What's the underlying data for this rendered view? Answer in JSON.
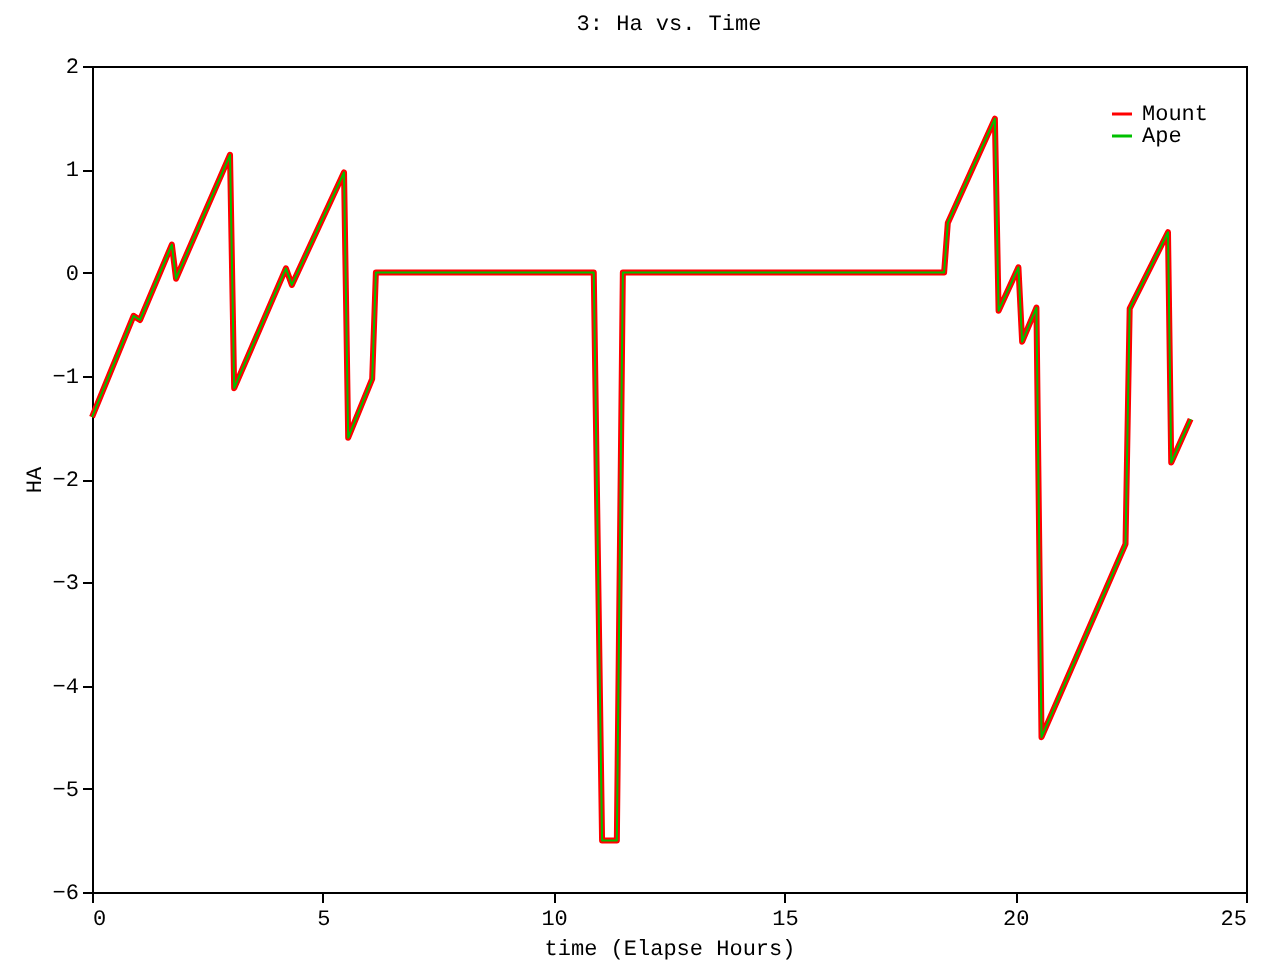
{
  "chart_data": {
    "type": "line",
    "title": "3: Ha vs. Time",
    "xlabel": "time (Elapse Hours)",
    "ylabel": "HA",
    "x": [
      0,
      0.9,
      1.04,
      1.73,
      1.82,
      2.99,
      3.08,
      4.2,
      4.33,
      5.46,
      5.55,
      6.07,
      6.15,
      10.87,
      11.05,
      11.37,
      11.5,
      18.46,
      18.54,
      19.56,
      19.64,
      20.07,
      20.15,
      20.46,
      20.57,
      22.39,
      22.48,
      23.31,
      23.38,
      23.8
    ],
    "series": [
      {
        "name": "Mount",
        "color": "#ff0000",
        "values": [
          -1.4,
          -0.42,
          -0.46,
          0.27,
          -0.06,
          1.14,
          -1.12,
          0.04,
          -0.12,
          0.97,
          -1.6,
          -1.03,
          0,
          0,
          -5.5,
          -5.5,
          0,
          0,
          0.48,
          1.49,
          -0.37,
          0.05,
          -0.67,
          -0.34,
          -4.5,
          -2.63,
          -0.35,
          0.39,
          -1.84,
          -1.42
        ]
      },
      {
        "name": "Ape",
        "color": "#00c000",
        "values": [
          -1.4,
          -0.42,
          -0.46,
          0.27,
          -0.06,
          1.14,
          -1.12,
          0.04,
          -0.12,
          0.97,
          -1.6,
          -1.03,
          0,
          0,
          -5.5,
          -5.5,
          0,
          0,
          0.48,
          1.49,
          -0.37,
          0.05,
          -0.67,
          -0.34,
          -4.5,
          -2.63,
          -0.35,
          0.39,
          -1.84,
          -1.42
        ]
      }
    ],
    "xlim": [
      0,
      25
    ],
    "xticks": [
      0,
      5,
      10,
      15,
      20,
      25
    ],
    "ylim": [
      -6,
      2
    ],
    "yticks": [
      -6,
      -5,
      -4,
      -3,
      -2,
      -1,
      0,
      1,
      2
    ],
    "grid": false,
    "legend": "top right"
  }
}
